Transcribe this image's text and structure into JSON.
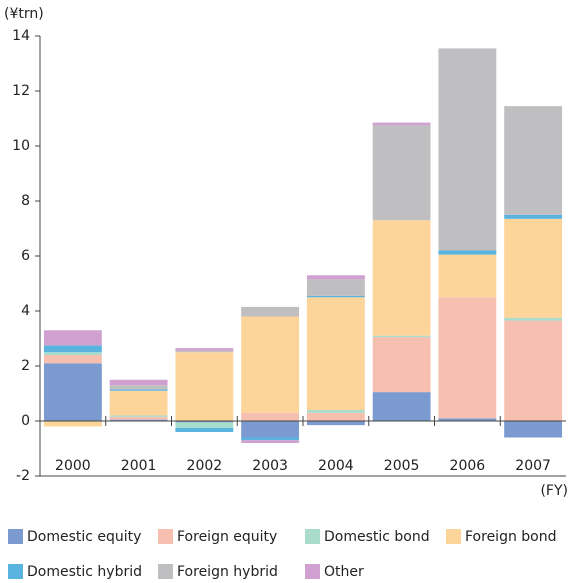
{
  "chart_data": {
    "type": "bar",
    "stacked": true,
    "y_label": "(¥trn)",
    "x_label": "(FY)",
    "categories": [
      "2000",
      "2001",
      "2002",
      "2003",
      "2004",
      "2005",
      "2006",
      "2007"
    ],
    "series": [
      {
        "name": "Domestic equity",
        "color": "#7b9bd0",
        "values": [
          2.1,
          0.05,
          -0.05,
          -0.6,
          -0.15,
          1.05,
          0.1,
          -0.6
        ]
      },
      {
        "name": "Foreign equity",
        "color": "#f7bfb0",
        "values": [
          0.3,
          0.1,
          0,
          0.3,
          0.3,
          2.0,
          4.4,
          3.65
        ]
      },
      {
        "name": "Domestic bond",
        "color": "#a9dccb",
        "values": [
          0.1,
          0.05,
          -0.2,
          0,
          0.1,
          0.05,
          0,
          0.1
        ]
      },
      {
        "name": "Foreign bond",
        "color": "#fdd49a",
        "values": [
          -0.2,
          0.9,
          2.5,
          3.5,
          4.1,
          4.2,
          1.55,
          3.6
        ]
      },
      {
        "name": "Domestic hybrid",
        "color": "#5ab4e0",
        "values": [
          0.25,
          0.05,
          -0.15,
          -0.1,
          0.05,
          0,
          0.15,
          0.15
        ]
      },
      {
        "name": "Foreign hybrid",
        "color": "#bfbfc1",
        "values": [
          0,
          0.15,
          0.05,
          0.35,
          0.6,
          3.45,
          7.35,
          3.95
        ]
      },
      {
        "name": "Other",
        "color": "#cfa0d0",
        "values": [
          0.55,
          0.2,
          0.1,
          -0.1,
          0.15,
          0.1,
          0,
          0
        ]
      }
    ],
    "ylim": [
      -2,
      14
    ],
    "yticks": [
      14,
      12,
      10,
      8,
      6,
      4,
      2,
      0,
      -2
    ],
    "grid": false,
    "legend": "bottom"
  }
}
